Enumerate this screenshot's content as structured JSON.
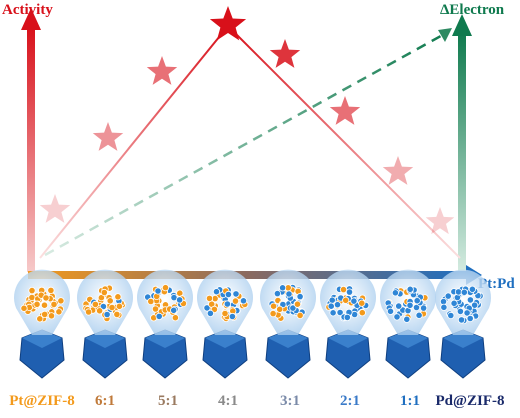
{
  "axes": {
    "left": "Activity",
    "right": "ΔElectron",
    "bottom": "Pt:Pd"
  },
  "samples": [
    "Pt@ZIF-8",
    "6:1",
    "5:1",
    "4:1",
    "3:1",
    "2:1",
    "1:1",
    "Pd@ZIF-8"
  ]
}
